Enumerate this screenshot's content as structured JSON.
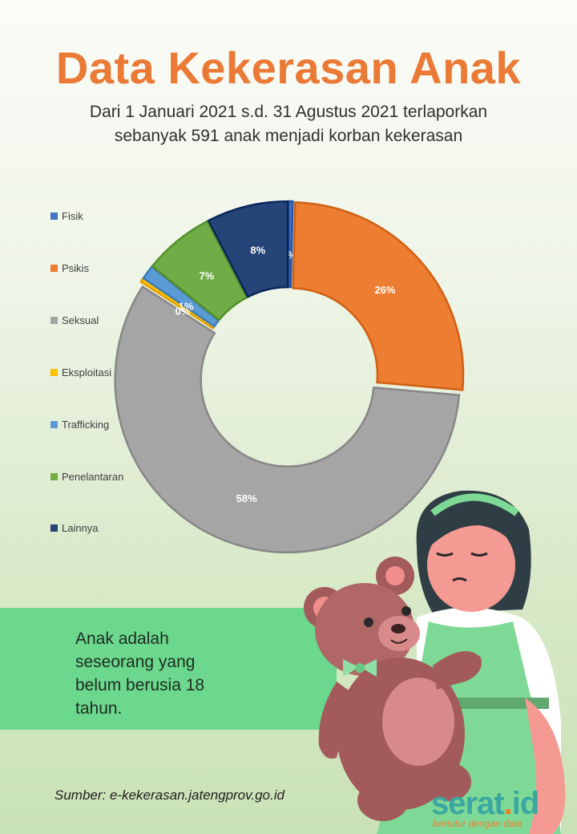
{
  "header": {
    "title": "Data Kekerasan Anak",
    "subtitle_line1": "Dari 1 Januari 2021 s.d. 31 Agustus 2021 terlaporkan",
    "subtitle_line2": "sebanyak 591 anak menjadi korban kekerasan"
  },
  "chart_data": {
    "type": "pie",
    "title": "",
    "donut": true,
    "legend_position": "left",
    "series": [
      {
        "name": "Fisik",
        "value": 0.4,
        "label": "0%",
        "color": "#4472c4"
      },
      {
        "name": "Psikis",
        "value": 26,
        "label": "26%",
        "color": "#ed7d31"
      },
      {
        "name": "Seksual",
        "value": 57.7,
        "label": "58%",
        "color": "#a5a5a5"
      },
      {
        "name": "Eksploitasi",
        "value": 0.4,
        "label": "0%",
        "color": "#ffc000"
      },
      {
        "name": "Trafficking",
        "value": 1.3,
        "label": "1%",
        "color": "#5b9bd5"
      },
      {
        "name": "Penelantaran",
        "value": 6.6,
        "label": "7%",
        "color": "#70ad47"
      },
      {
        "name": "Lainnya",
        "value": 7.6,
        "label": "8%",
        "color": "#264478"
      }
    ]
  },
  "info": {
    "line1": "Anak adalah",
    "line2": "seseorang yang",
    "line3": "belum berusia 18",
    "line4": "tahun."
  },
  "footer": {
    "source": "Sumber: e-kekerasan.jatengprov.go.id",
    "logo_main": "serat",
    "logo_dot": ".",
    "logo_suffix": "id",
    "logo_tagline": "bertutur dengan data"
  },
  "colors": {
    "title": "#ea7a35",
    "band": "#6bd88d",
    "logo": "#3aa7a0",
    "logo_accent": "#f07c2c"
  }
}
